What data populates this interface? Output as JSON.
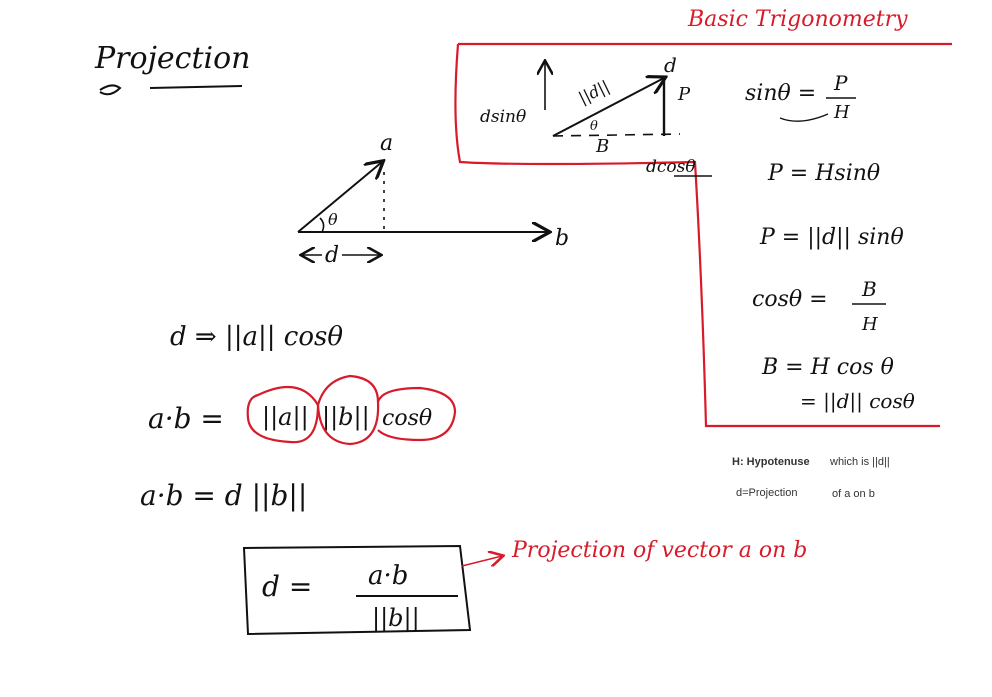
{
  "title": "Projection",
  "section_title": "Basic Trigonometry",
  "triangle": {
    "label_a": "a",
    "label_b": "b",
    "label_theta": "θ",
    "label_d": "d"
  },
  "equations": {
    "d_def": "d ⇒ ||a|| cosθ",
    "dot_lhs": "a·b =",
    "dot_term1": "||a||",
    "dot_term2": "||b||",
    "dot_term3": "cosθ",
    "dot_d": "a·b = d ||b||",
    "boxed_lhs": "d =",
    "boxed_num": "a·b",
    "boxed_den": "||b||",
    "boxed_note": "Projection of vector a on b"
  },
  "trig": {
    "d_label": "d",
    "norm_d": "||d||",
    "p_label": "P",
    "b_label": "B",
    "theta": "θ",
    "dsin": "dsinθ",
    "dcos": "dcosθ",
    "sin_lhs": "sinθ =",
    "sin_num": "P",
    "sin_den": "H",
    "p_eq1": "P = Hsinθ",
    "p_eq2": "P = ||d|| sinθ",
    "cos_lhs": "cosθ =",
    "cos_num": "B",
    "cos_den": "H",
    "b_eq1": "B = H cos θ",
    "b_eq2": "= ||d|| cosθ"
  },
  "notes": {
    "h_left": "H: Hypotenuse",
    "h_right": "which is ||d||",
    "d_left": "d=Projection",
    "d_right": "of a on b"
  }
}
